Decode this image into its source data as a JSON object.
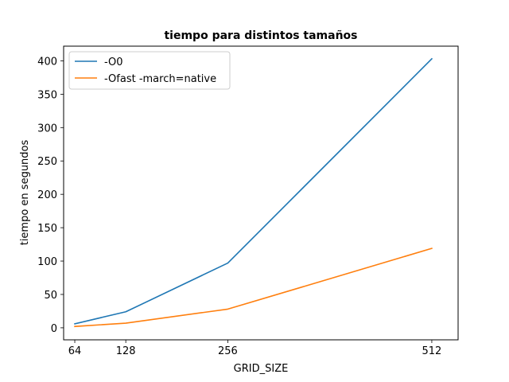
{
  "chart_data": {
    "type": "line",
    "title": "tiempo para distintos tamaños",
    "xlabel": "GRID_SIZE",
    "ylabel": "tiempo en segundos",
    "x": [
      64,
      128,
      256,
      512
    ],
    "xticks": [
      "64",
      "128",
      "256",
      "512"
    ],
    "xlim": [
      50,
      545
    ],
    "ylim": [
      -18,
      422
    ],
    "yticks": [
      "0",
      "50",
      "100",
      "150",
      "200",
      "250",
      "300",
      "350",
      "400"
    ],
    "grid": false,
    "legend_position": "top-left",
    "series": [
      {
        "name": "-O0",
        "color": "#1f77b4",
        "values": [
          6,
          24,
          97,
          403
        ]
      },
      {
        "name": "-Ofast -march=native",
        "color": "#ff7f0e",
        "values": [
          2,
          7,
          28,
          119
        ]
      }
    ]
  }
}
